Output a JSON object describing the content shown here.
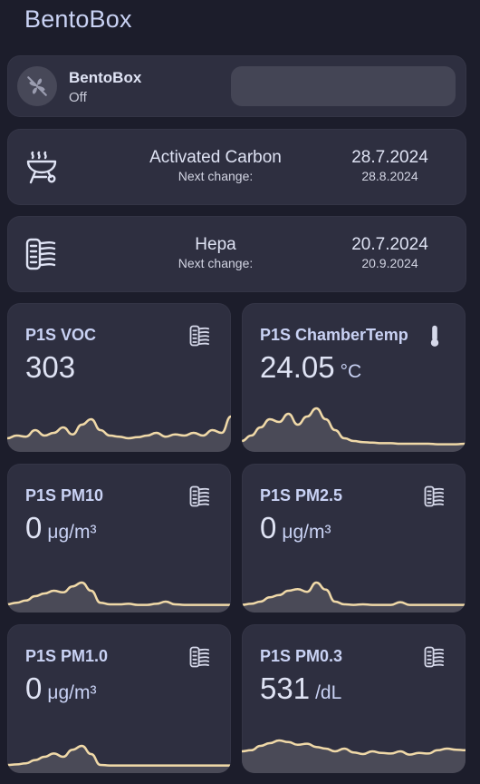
{
  "page": {
    "title": "BentoBox"
  },
  "fan": {
    "name": "BentoBox",
    "state": "Off",
    "icon": "fan-off-icon"
  },
  "filters": [
    {
      "name": "Activated Carbon",
      "next_label": "Next change:",
      "date": "28.7.2024",
      "next_date": "28.8.2024",
      "icon": "grill-icon"
    },
    {
      "name": "Hepa",
      "next_label": "Next change:",
      "date": "20.7.2024",
      "next_date": "20.9.2024",
      "icon": "air-filter-icon"
    }
  ],
  "sensors": [
    {
      "name": "P1S VOC",
      "value": "303",
      "unit": "",
      "icon": "air-filter-icon",
      "history": [
        0.15,
        0.2,
        0.18,
        0.3,
        0.2,
        0.25,
        0.35,
        0.22,
        0.4,
        0.5,
        0.3,
        0.2,
        0.18,
        0.15,
        0.17,
        0.2,
        0.25,
        0.18,
        0.22,
        0.2,
        0.25,
        0.2,
        0.3,
        0.25,
        0.55
      ]
    },
    {
      "name": "P1S ChamberTemp",
      "value": "24.05",
      "unit": "°C",
      "icon": "thermometer-icon",
      "history": [
        0.1,
        0.2,
        0.35,
        0.5,
        0.45,
        0.6,
        0.4,
        0.55,
        0.7,
        0.5,
        0.3,
        0.15,
        0.1,
        0.08,
        0.07,
        0.06,
        0.06,
        0.05,
        0.05,
        0.05,
        0.05,
        0.04,
        0.04,
        0.04,
        0.05
      ]
    },
    {
      "name": "P1S PM10",
      "value": "0",
      "unit": "μg/m³",
      "icon": "air-filter-icon",
      "history": [
        0.05,
        0.08,
        0.12,
        0.2,
        0.25,
        0.3,
        0.27,
        0.38,
        0.45,
        0.3,
        0.08,
        0.05,
        0.05,
        0.06,
        0.04,
        0.04,
        0.06,
        0.1,
        0.05,
        0.04,
        0.04,
        0.04,
        0.04,
        0.04,
        0.04
      ]
    },
    {
      "name": "P1S PM2.5",
      "value": "0",
      "unit": "μg/m³",
      "icon": "air-filter-icon",
      "history": [
        0.04,
        0.06,
        0.1,
        0.18,
        0.22,
        0.3,
        0.33,
        0.28,
        0.45,
        0.32,
        0.1,
        0.05,
        0.04,
        0.05,
        0.04,
        0.04,
        0.04,
        0.09,
        0.04,
        0.04,
        0.04,
        0.04,
        0.04,
        0.04,
        0.04
      ]
    },
    {
      "name": "P1S PM1.0",
      "value": "0",
      "unit": "μg/m³",
      "icon": "air-filter-icon",
      "history": [
        0.05,
        0.06,
        0.08,
        0.14,
        0.2,
        0.26,
        0.2,
        0.33,
        0.4,
        0.25,
        0.05,
        0.04,
        0.04,
        0.04,
        0.04,
        0.04,
        0.04,
        0.04,
        0.04,
        0.04,
        0.04,
        0.04,
        0.04,
        0.04,
        0.04
      ]
    },
    {
      "name": "P1S PM0.3",
      "value": "531",
      "unit": "/dL",
      "icon": "air-filter-icon",
      "history": [
        0.3,
        0.32,
        0.4,
        0.45,
        0.5,
        0.47,
        0.42,
        0.44,
        0.38,
        0.35,
        0.3,
        0.35,
        0.28,
        0.25,
        0.3,
        0.27,
        0.26,
        0.3,
        0.24,
        0.27,
        0.26,
        0.32,
        0.35,
        0.33,
        0.32
      ]
    }
  ],
  "colors": {
    "background": "#1c1d2b",
    "card": "#2e2f40",
    "spark_line": "#f0d9a8",
    "spark_fill": "#4a4a57"
  }
}
